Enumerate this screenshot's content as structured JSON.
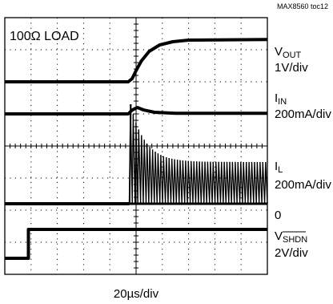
{
  "chart_data": {
    "type": "line",
    "figure_id": "MAX8560 toc12",
    "annotation": "100Ω LOAD",
    "time_scale": "20µs/div",
    "divisions": {
      "x": 10,
      "y": 8
    },
    "grid": true,
    "traces": [
      {
        "name": "V_OUT",
        "label_main": "V",
        "label_sub": "OUT",
        "scale": "1V/div",
        "points": [
          [
            0,
            6.0
          ],
          [
            4.7,
            6.0
          ],
          [
            4.85,
            6.1
          ],
          [
            5.0,
            6.35
          ],
          [
            5.2,
            6.65
          ],
          [
            5.5,
            6.95
          ],
          [
            5.9,
            7.15
          ],
          [
            6.4,
            7.25
          ],
          [
            7.0,
            7.3
          ],
          [
            10,
            7.32
          ]
        ]
      },
      {
        "name": "I_IN",
        "label_main": "I",
        "label_sub": "IN",
        "scale": "200mA/div",
        "points": [
          [
            0,
            5.0
          ],
          [
            4.7,
            5.0
          ],
          [
            4.85,
            5.12
          ],
          [
            5.05,
            5.2
          ],
          [
            5.3,
            5.12
          ],
          [
            5.7,
            5.05
          ],
          [
            6.5,
            5.02
          ],
          [
            10,
            5.02
          ]
        ]
      },
      {
        "name": "I_L",
        "label_main": "I",
        "label_sub": "L",
        "scale": "200mA/div",
        "zero_label": "0",
        "baseline": 2.2,
        "switching_start": 4.75,
        "switching_peak": 3.1,
        "switching_settled": 1.3,
        "switching_pulses": 50
      },
      {
        "name": "V_SHDN",
        "label_main": "V",
        "label_sub": "SHDN",
        "scale": "2V/div",
        "points": [
          [
            0,
            0.5
          ],
          [
            0.9,
            0.5
          ],
          [
            0.9,
            1.4
          ],
          [
            10,
            1.4
          ]
        ]
      }
    ]
  }
}
